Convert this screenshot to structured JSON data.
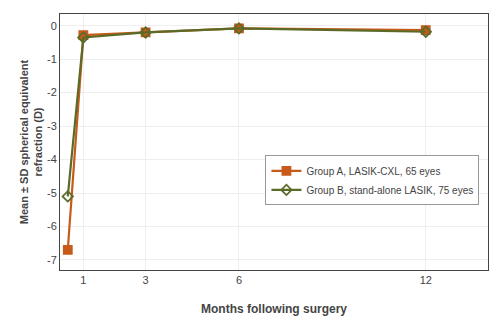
{
  "chart_data": {
    "type": "line",
    "xlabel": "Months following surgery",
    "ylabel": "Mean ± SD spherical equivalent\nrefraction (D)",
    "series": [
      {
        "name": "Group A, LASIK-CXL, 65 eyes",
        "color": "#C85A1A",
        "marker": "square",
        "x": [
          0.5,
          1,
          3,
          6,
          12
        ],
        "values": [
          -6.7,
          -0.28,
          -0.2,
          -0.08,
          -0.13
        ]
      },
      {
        "name": "Group B, stand-alone LASIK, 75 eyes",
        "color": "#5A6B28",
        "marker": "diamond-open",
        "x": [
          0.5,
          1,
          3,
          6,
          12
        ],
        "values": [
          -5.1,
          -0.35,
          -0.2,
          -0.08,
          -0.18
        ]
      }
    ],
    "xlim": [
      0.25,
      14.0
    ],
    "xticks": [
      1,
      3,
      6,
      12
    ],
    "ylim": [
      -7.3,
      0.35
    ],
    "yticks": [
      0,
      -1,
      -2,
      -3,
      -4,
      -5,
      -6,
      -7
    ],
    "grid": true,
    "legend": "right"
  }
}
